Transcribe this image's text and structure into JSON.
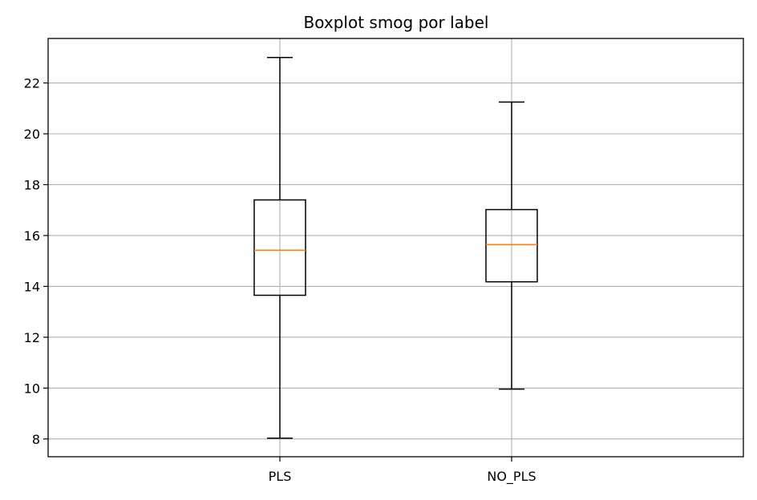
{
  "chart_data": {
    "type": "boxplot",
    "title": "Boxplot smog por label",
    "xlabel": "",
    "ylabel": "",
    "categories": [
      "PLS",
      "NO_PLS"
    ],
    "boxes": [
      {
        "label": "PLS",
        "whisker_low": 8.03,
        "q1": 13.65,
        "median": 15.42,
        "q3": 17.4,
        "whisker_high": 23.0
      },
      {
        "label": "NO_PLS",
        "whisker_low": 9.96,
        "q1": 14.18,
        "median": 15.64,
        "q3": 17.02,
        "whisker_high": 21.25
      }
    ],
    "ylim": [
      7.3,
      23.75
    ],
    "yticks": [
      8,
      10,
      12,
      14,
      16,
      18,
      20,
      22
    ],
    "grid": true,
    "colors": {
      "box": "#000000",
      "median": "#ff7f0e",
      "grid": "#b0b0b0"
    }
  }
}
